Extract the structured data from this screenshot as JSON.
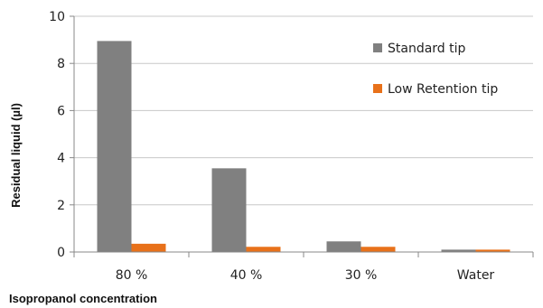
{
  "chart_data": {
    "type": "bar",
    "categories": [
      "80 %",
      "40 %",
      "30 %",
      "Water"
    ],
    "series": [
      {
        "name": "Standard tip",
        "color": "#808080",
        "values": [
          8.95,
          3.55,
          0.45,
          0.1
        ]
      },
      {
        "name": "Low Retention tip",
        "color": "#e8711a",
        "values": [
          0.35,
          0.22,
          0.22,
          0.1
        ]
      }
    ],
    "xlabel": "Isopropanol concentration",
    "ylabel": "Residual liquid (µl)",
    "ylim": [
      0,
      10
    ],
    "yticks": [
      "0",
      "2",
      "4",
      "6",
      "8",
      "10"
    ],
    "grid": true,
    "legend_position": "top-right"
  }
}
